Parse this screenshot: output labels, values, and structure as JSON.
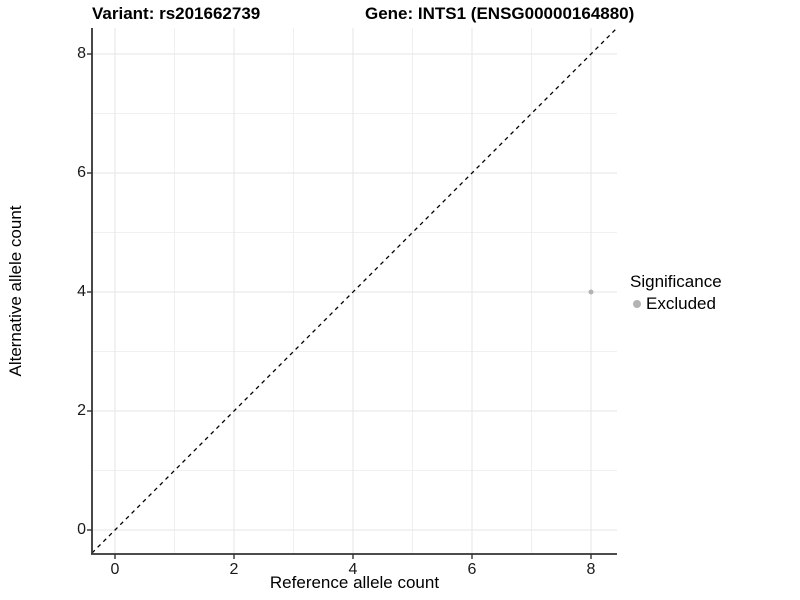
{
  "titles": {
    "variant": "Variant: rs201662739",
    "gene": "Gene: INTS1 (ENSG00000164880)"
  },
  "axes": {
    "x": {
      "label": "Reference allele count",
      "ticks": [
        0,
        2,
        4,
        6,
        8
      ]
    },
    "y": {
      "label": "Alternative allele count",
      "ticks": [
        0,
        2,
        4,
        6,
        8
      ]
    }
  },
  "legend": {
    "title": "Significance",
    "items": [
      {
        "label": "Excluded",
        "color": "#b3b3b3"
      }
    ]
  },
  "colors": {
    "background": "#ffffff",
    "axis_line": "#333333",
    "major_grid": "#e6e6e6",
    "minor_grid": "#f0f0f0",
    "identity_line": "#000000",
    "point": "#b3b3b3",
    "text": "#000000"
  },
  "chart_data": {
    "type": "scatter",
    "title": "Variant: rs201662739    Gene: INTS1 (ENSG00000164880)",
    "xlabel": "Reference allele count",
    "ylabel": "Alternative allele count",
    "xlim": [
      -0.4,
      8.4
    ],
    "ylim": [
      -0.4,
      8.4
    ],
    "x_ticks": [
      0,
      2,
      4,
      6,
      8
    ],
    "y_ticks": [
      0,
      2,
      4,
      6,
      8
    ],
    "minor_ticks": [
      1,
      3,
      5,
      7
    ],
    "grid": "on",
    "legend_position": "right",
    "reference_line": {
      "type": "identity y=x",
      "style": "dashed",
      "color": "#000000"
    },
    "series": [
      {
        "name": "Excluded",
        "color": "#b3b3b3",
        "points": [
          {
            "x": 8,
            "y": 4
          }
        ]
      }
    ]
  }
}
